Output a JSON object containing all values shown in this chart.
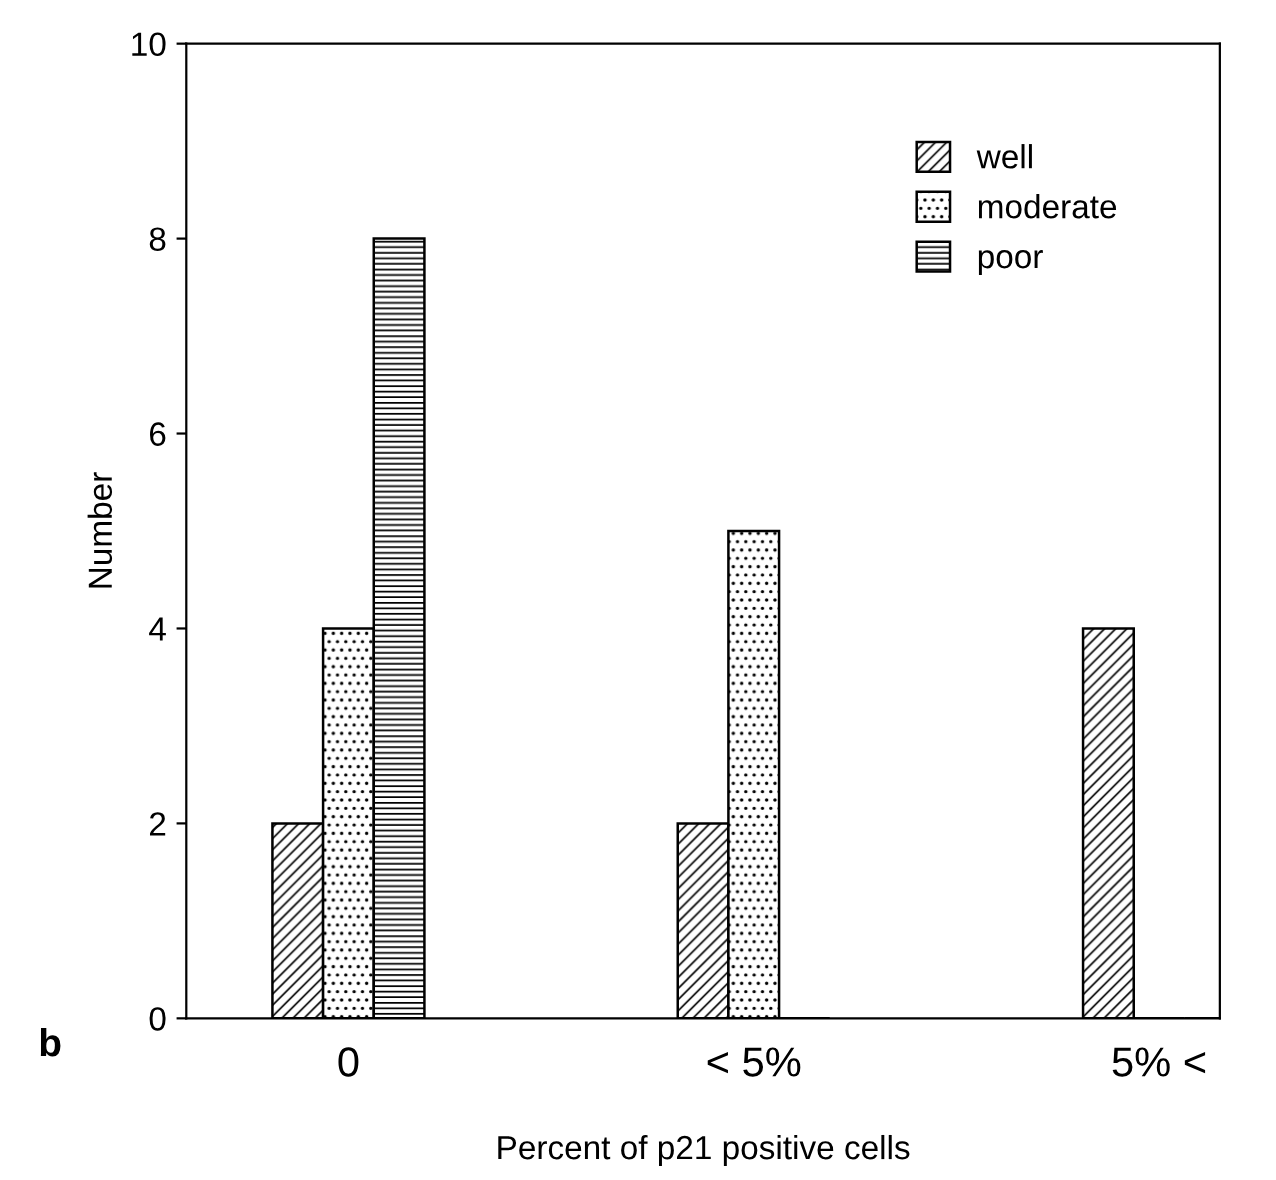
{
  "chart_data": {
    "type": "bar",
    "xlabel": "Percent of p21 positive cells",
    "ylabel": "Number",
    "categories": [
      "0",
      "< 5%",
      "5% <"
    ],
    "series": [
      {
        "name": "well",
        "color": "#000000",
        "values": [
          2,
          2,
          4
        ]
      },
      {
        "name": "moderate",
        "color": "#000000",
        "values": [
          4,
          5,
          0
        ]
      },
      {
        "name": "poor",
        "color": "#000000",
        "values": [
          8,
          0,
          0
        ]
      }
    ],
    "ylim": [
      0,
      10
    ],
    "yticks": [
      0,
      2,
      4,
      6,
      8,
      10
    ],
    "grid": false,
    "legend": "top right",
    "annotations": [
      "b"
    ]
  }
}
